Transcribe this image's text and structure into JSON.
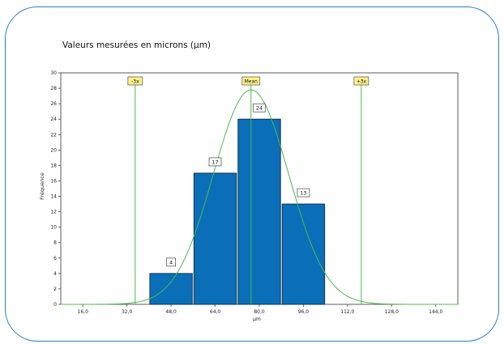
{
  "chart_data": {
    "type": "bar",
    "title": "Valeurs mesurées en microns (µm)",
    "xlabel": "µm",
    "ylabel": "Fréquence",
    "xlim": [
      8,
      152
    ],
    "ylim": [
      0,
      30
    ],
    "x_ticks": [
      "16,0",
      "32,0",
      "48,0",
      "64,0",
      "80,0",
      "96,0",
      "112,0",
      "128,0",
      "144,0"
    ],
    "x_tick_values": [
      16,
      32,
      48,
      64,
      80,
      96,
      112,
      128,
      144
    ],
    "y_ticks": [
      0,
      2,
      4,
      6,
      8,
      10,
      12,
      14,
      16,
      18,
      20,
      22,
      24,
      26,
      28,
      30
    ],
    "bars": [
      {
        "x0": 40,
        "x1": 56,
        "value": 4,
        "label": "4"
      },
      {
        "x0": 56,
        "x1": 72,
        "value": 17,
        "label": "17"
      },
      {
        "x0": 72,
        "x1": 88,
        "value": 24,
        "label": "24"
      },
      {
        "x0": 88,
        "x1": 104,
        "value": 13,
        "label": "13"
      }
    ],
    "reference_lines": [
      {
        "label": "-3x",
        "x": 35
      },
      {
        "label": "Mean",
        "x": 77
      },
      {
        "label": "+3x",
        "x": 117
      }
    ],
    "normal_curve": {
      "mean": 77,
      "peak": 27.8
    },
    "grid": false,
    "colors": {
      "bar": "#0a6fb8",
      "bar_edge": "#0d2a44",
      "curve": "#4cb84c",
      "ref_label_bg": "#fff08a",
      "frame": "#2a7fc4"
    }
  }
}
